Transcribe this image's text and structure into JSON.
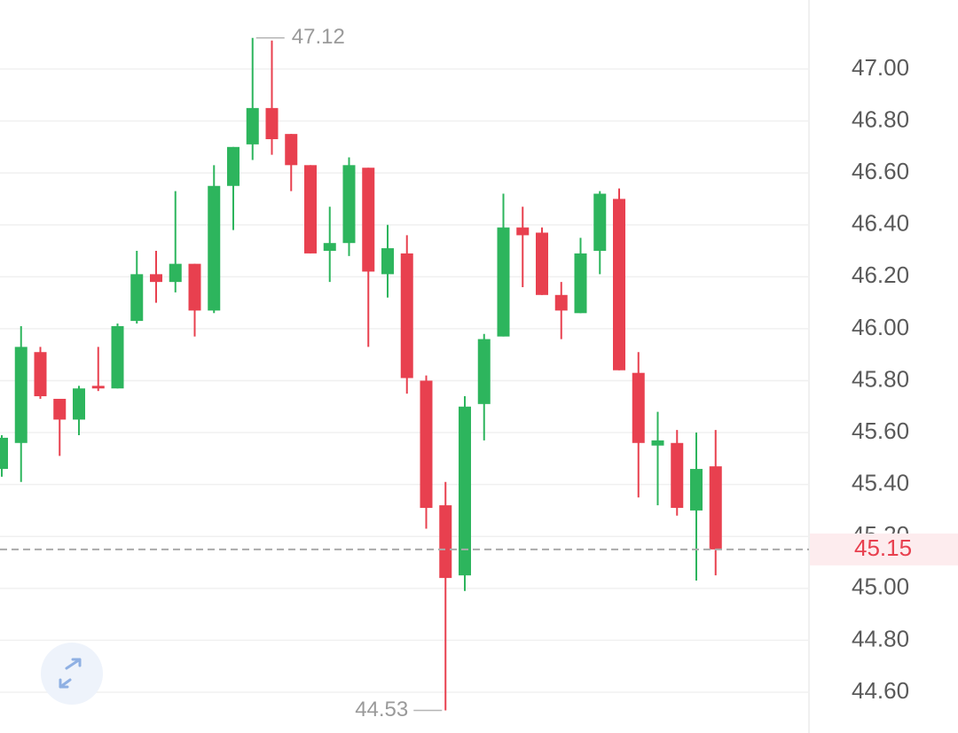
{
  "chart_data": {
    "type": "candlestick",
    "open": [
      45.46,
      45.56,
      45.91,
      45.73,
      45.65,
      45.78,
      45.77,
      46.03,
      46.21,
      46.18,
      46.25,
      46.07,
      46.55,
      46.71,
      46.85,
      46.75,
      46.63,
      46.3,
      46.33,
      46.62,
      46.21,
      46.29,
      45.8,
      45.32,
      45.05,
      45.71,
      45.97,
      46.39,
      46.37,
      46.13,
      46.06,
      46.3,
      46.5,
      45.83,
      45.55,
      45.56,
      45.3,
      45.47
    ],
    "high": [
      45.59,
      46.01,
      45.93,
      45.73,
      45.78,
      45.93,
      46.02,
      46.3,
      46.3,
      46.53,
      46.25,
      46.63,
      46.7,
      47.12,
      47.11,
      46.75,
      46.63,
      46.47,
      46.66,
      46.62,
      46.4,
      46.36,
      45.82,
      45.41,
      45.74,
      45.98,
      46.52,
      46.47,
      46.39,
      46.18,
      46.35,
      46.53,
      46.54,
      45.91,
      45.68,
      45.61,
      45.6,
      45.61
    ],
    "low": [
      45.43,
      45.41,
      45.73,
      45.51,
      45.59,
      45.76,
      45.77,
      46.02,
      46.1,
      46.14,
      45.97,
      46.06,
      46.38,
      46.65,
      46.67,
      46.53,
      46.29,
      46.18,
      46.28,
      45.93,
      46.12,
      45.75,
      45.23,
      44.53,
      44.99,
      45.57,
      45.97,
      46.16,
      46.13,
      45.96,
      46.06,
      46.21,
      45.84,
      45.35,
      45.32,
      45.28,
      45.03,
      45.05
    ],
    "close": [
      45.58,
      45.93,
      45.74,
      45.65,
      45.77,
      45.77,
      46.01,
      46.21,
      46.18,
      46.25,
      46.07,
      46.55,
      46.7,
      46.85,
      46.73,
      46.63,
      46.29,
      46.33,
      46.63,
      46.22,
      46.31,
      45.81,
      45.31,
      45.04,
      45.7,
      45.96,
      46.39,
      46.36,
      46.13,
      46.07,
      46.29,
      46.52,
      45.84,
      45.56,
      45.57,
      45.31,
      45.46,
      45.15
    ],
    "up_color": "#2db55d",
    "down_color": "#e8404f",
    "ylim": [
      44.443,
      47.266
    ],
    "yticks": [
      {
        "value": 44.6,
        "label": "44.60"
      },
      {
        "value": 44.8,
        "label": "44.80"
      },
      {
        "value": 45.0,
        "label": "45.00"
      },
      {
        "value": 45.2,
        "label": "45.20"
      },
      {
        "value": 45.4,
        "label": "45.40"
      },
      {
        "value": 45.6,
        "label": "45.60"
      },
      {
        "value": 45.8,
        "label": "45.80"
      },
      {
        "value": 46.0,
        "label": "46.00"
      },
      {
        "value": 46.2,
        "label": "46.20"
      },
      {
        "value": 46.4,
        "label": "46.40"
      },
      {
        "value": 46.6,
        "label": "46.60"
      },
      {
        "value": 46.8,
        "label": "46.80"
      },
      {
        "value": 47.0,
        "label": "47.00"
      }
    ],
    "grid": true,
    "high_label": 47.12,
    "low_label": 44.53,
    "last_price": 45.15
  }
}
